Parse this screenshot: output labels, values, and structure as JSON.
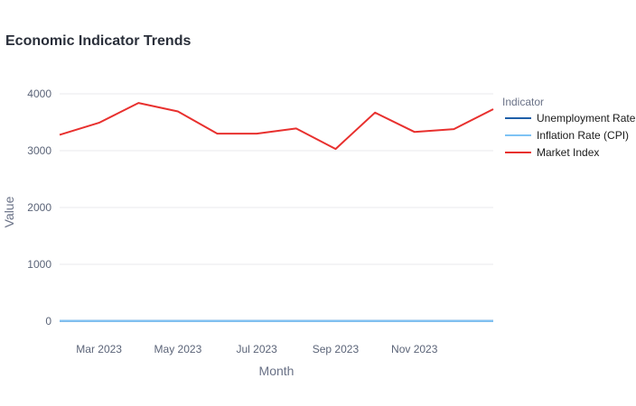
{
  "chart_data": {
    "type": "line",
    "title": "Economic Indicator Trends",
    "xlabel": "Month",
    "ylabel": "Value",
    "x": [
      "2023-02",
      "2023-03",
      "2023-04",
      "2023-05",
      "2023-06",
      "2023-07",
      "2023-08",
      "2023-09",
      "2023-10",
      "2023-11",
      "2023-12",
      "2024-01"
    ],
    "x_tick_labels": [
      "Mar 2023",
      "May 2023",
      "Jul 2023",
      "Sep 2023",
      "Nov 2023"
    ],
    "x_tick_values": [
      "2023-03",
      "2023-05",
      "2023-07",
      "2023-09",
      "2023-11"
    ],
    "y_ticks": [
      0,
      1000,
      2000,
      3000,
      4000
    ],
    "ylim": [
      -50,
      4150
    ],
    "grid": true,
    "legend": {
      "title": "Indicator",
      "placement": "right"
    },
    "series": [
      {
        "name": "Unemployment Rate",
        "color": "#1f5fa8",
        "values": [
          3.6,
          3.5,
          3.4,
          3.7,
          3.6,
          3.5,
          3.8,
          3.8,
          3.8,
          3.7,
          3.7,
          3.7
        ]
      },
      {
        "name": "Inflation Rate (CPI)",
        "color": "#7ec3f5",
        "values": [
          6.0,
          5.0,
          4.9,
          4.0,
          3.0,
          3.2,
          3.7,
          3.7,
          3.2,
          3.1,
          3.4,
          3.1
        ]
      },
      {
        "name": "Market Index",
        "color": "#e8302e",
        "values": [
          3280,
          3490,
          3840,
          3690,
          3300,
          3300,
          3390,
          3030,
          3670,
          3330,
          3380,
          3730
        ]
      }
    ]
  }
}
